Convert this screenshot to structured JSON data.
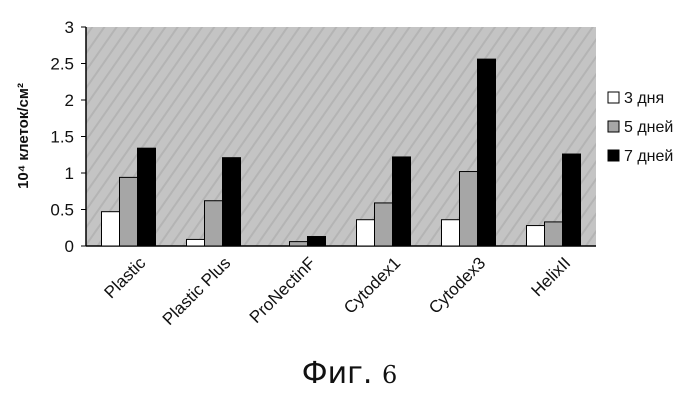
{
  "chart_data": {
    "type": "bar",
    "ylabel": "10⁴ клеток/см²",
    "ylim": [
      0,
      3
    ],
    "yticks": [
      "0",
      "0.5",
      "1",
      "1.5",
      "2",
      "2.5",
      "3"
    ],
    "ytick_values": [
      0,
      0.5,
      1,
      1.5,
      2,
      2.5,
      3
    ],
    "categories": [
      "Plastic",
      "Plastic Plus",
      "ProNectinF",
      "Cytodex1",
      "Cytodex3",
      "HelixII"
    ],
    "series": [
      {
        "name": "3 дня",
        "color": "#ffffff",
        "values": [
          0.47,
          0.09,
          0.0,
          0.36,
          0.36,
          0.28
        ]
      },
      {
        "name": "5 дней",
        "color": "#a6a6a6",
        "values": [
          0.94,
          0.62,
          0.06,
          0.59,
          1.02,
          0.33
        ]
      },
      {
        "name": "7 дней",
        "color": "#000000",
        "values": [
          1.34,
          1.21,
          0.13,
          1.22,
          2.56,
          1.26
        ]
      }
    ],
    "legend": "right",
    "grid": false
  },
  "figure": {
    "caption_text": "Фиг.",
    "caption_number": "6"
  },
  "colors": {
    "plot_background": "#c4c4c4",
    "bar_outline": "#000000"
  }
}
